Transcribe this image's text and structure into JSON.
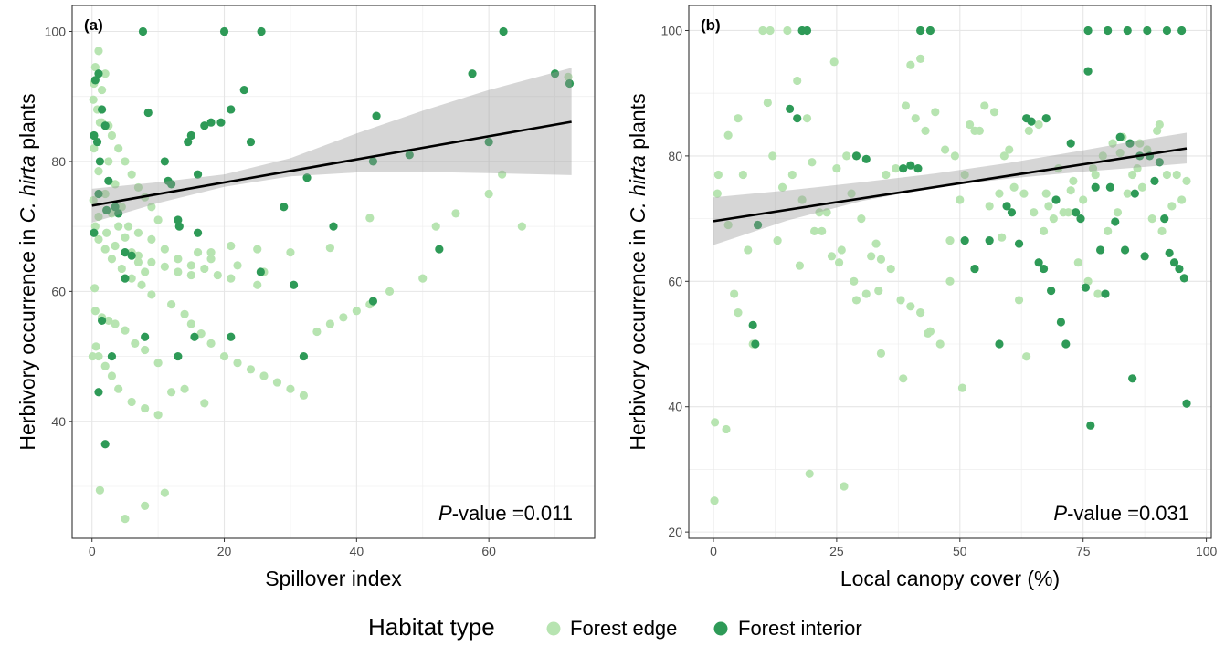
{
  "legend": {
    "title": "Habitat type",
    "items": [
      {
        "label": "Forest edge",
        "color": "#b7e4b1"
      },
      {
        "label": "Forest interior",
        "color": "#2e9a57"
      }
    ]
  },
  "chart_data": [
    {
      "type": "scatter",
      "panel_label": "(a)",
      "xlabel": "Spillover index",
      "ylabel_pre": "Herbivory occurrence in ",
      "ylabel_italic": "C. hirta",
      "ylabel_post": " plants",
      "pvalue_italic": "P",
      "pvalue_rest": "-value =0.011",
      "xlim": [
        -3,
        76
      ],
      "ylim": [
        22,
        104
      ],
      "xticks": [
        0,
        20,
        40,
        60
      ],
      "yticks": [
        40,
        60,
        80,
        100
      ],
      "xtick_labels": [
        "0",
        "20",
        "40",
        "60"
      ],
      "ytick_labels": [
        "40",
        "60",
        "80",
        "100"
      ],
      "grid": true,
      "trend": {
        "x": [
          0,
          72.5
        ],
        "y": [
          73.2,
          86.1
        ]
      },
      "ci_band": {
        "x": [
          0,
          10,
          20,
          30,
          40,
          50,
          60,
          72.5
        ],
        "lower": [
          70.6,
          73.6,
          76.1,
          77.7,
          78.3,
          78.4,
          78.2,
          77.9
        ],
        "upper": [
          75.8,
          76.8,
          78.0,
          80.5,
          84.3,
          87.8,
          91.0,
          94.4
        ]
      },
      "series": [
        {
          "name": "Forest edge",
          "color": "#b7e4b1",
          "x": [
            1.0,
            0.5,
            2.0,
            0.3,
            1.5,
            0.2,
            0.8,
            1.2,
            2.5,
            3.0,
            4.0,
            5.0,
            6.0,
            7.0,
            8.0,
            9.0,
            10.0,
            0.5,
            1.0,
            2.0,
            3.0,
            4.5,
            6.0,
            7.5,
            9.0,
            12.0,
            14.0,
            15.0,
            16.5,
            18.0,
            20.0,
            22.0,
            24.0,
            26.0,
            28.0,
            30.0,
            32.0,
            34.0,
            36.0,
            38.0,
            40.0,
            42.0,
            45.0,
            50.0,
            52.0,
            55.0,
            60.0,
            62.0,
            65.0,
            72.0,
            0.3,
            1.0,
            2.0,
            3.0,
            4.0,
            5.0,
            6.0,
            7.0,
            8.0,
            1.5,
            2.5,
            3.5,
            4.5,
            5.5,
            7.0,
            9.0,
            11.0,
            13.0,
            15.0,
            17.0,
            19.0,
            21.0,
            25.0,
            0.5,
            1.5,
            2.5,
            3.5,
            5.0,
            6.5,
            8.0,
            10.0,
            1.0,
            2.0,
            3.0,
            4.0,
            6.0,
            8.0,
            10.0,
            12.0,
            14.0,
            16.0,
            18.0,
            22.0,
            26.0,
            0.2,
            1.0,
            2.2,
            3.5,
            5.0,
            7.0,
            9.0,
            11.0,
            13.0,
            15.0,
            18.0,
            21.0,
            25.0,
            30.0,
            36.0,
            42.0,
            5.0,
            8.0,
            11.0,
            17.0,
            1.2,
            0.6,
            0.1,
            0.4
          ],
          "y": [
            97,
            94.5,
            93.5,
            92,
            91,
            89.5,
            88,
            86,
            85.5,
            84,
            82,
            80,
            78,
            76,
            74.5,
            73,
            71,
            70,
            68,
            66.5,
            65,
            63.5,
            62,
            61,
            59.5,
            58,
            56.5,
            55,
            53.5,
            52,
            50,
            49,
            48,
            47,
            46,
            45,
            44,
            53.8,
            55,
            56,
            57,
            58,
            60,
            62,
            70,
            72,
            75,
            78,
            70,
            93,
            82,
            78.5,
            75,
            72,
            70,
            68.3,
            66,
            64.5,
            63,
            86,
            80,
            76.5,
            73,
            70,
            69,
            68,
            66.5,
            65,
            64,
            63.5,
            62.5,
            62,
            61,
            57,
            56,
            55.5,
            55,
            54,
            52,
            51,
            49,
            50,
            48.5,
            47,
            45,
            43,
            42,
            41,
            44.5,
            45,
            66,
            65,
            64,
            63,
            74,
            71.5,
            69,
            67,
            66,
            65.5,
            64.5,
            63.8,
            63,
            62.5,
            66,
            67,
            66.5,
            66,
            66.7,
            71.3,
            25,
            27,
            29,
            42.8,
            29.4,
            51.5,
            50,
            60.5
          ]
        },
        {
          "name": "Forest interior",
          "color": "#2e9a57",
          "x": [
            7.7,
            20.0,
            25.6,
            62.2,
            72.2,
            0.5,
            1.0,
            1.5,
            2.0,
            0.3,
            0.8,
            1.2,
            2.5,
            3.5,
            4.0,
            5.0,
            8.5,
            11.0,
            12.0,
            13.0,
            14.5,
            15.0,
            16.0,
            17.0,
            18.0,
            19.5,
            21.0,
            23.0,
            24.0,
            32.0,
            36.5,
            42.5,
            43.0,
            48.0,
            52.5,
            57.5,
            60.0,
            70.0,
            1.0,
            0.3,
            2.0,
            3.0,
            5.0,
            6.0,
            8.0,
            11.5,
            13.0,
            15.5,
            21.0,
            25.5,
            30.5,
            32.5,
            42.5,
            1.0,
            1.5,
            2.2,
            13.2,
            16.0,
            29.0
          ],
          "y": [
            100,
            100,
            100,
            100,
            92,
            92.5,
            93.5,
            88,
            85.5,
            84,
            83,
            80,
            77,
            73,
            72,
            66,
            87.5,
            80,
            76.5,
            71,
            83,
            84,
            69,
            85.5,
            86,
            86,
            88,
            91,
            83,
            50,
            70,
            58.5,
            87,
            81,
            66.5,
            93.5,
            83,
            93.5,
            44.5,
            69,
            36.5,
            50,
            62,
            65.5,
            53,
            77,
            50,
            53,
            53,
            63,
            61,
            77.5,
            80,
            75,
            55.5,
            72.5,
            70,
            78,
            73
          ]
        }
      ]
    },
    {
      "type": "scatter",
      "panel_label": "(b)",
      "xlabel": "Local canopy cover (%)",
      "ylabel_pre": "Herbivory occurrence in ",
      "ylabel_italic": "C. hirta",
      "ylabel_post": " plants",
      "pvalue_italic": "P",
      "pvalue_rest": "-value =0.031",
      "xlim": [
        -5,
        101
      ],
      "ylim": [
        19,
        104
      ],
      "xticks": [
        0,
        25,
        50,
        75,
        100
      ],
      "yticks": [
        20,
        40,
        60,
        80,
        100
      ],
      "xtick_labels": [
        "0",
        "25",
        "50",
        "75",
        "100"
      ],
      "ytick_labels": [
        "20",
        "40",
        "60",
        "80",
        "100"
      ],
      "grid": true,
      "trend": {
        "x": [
          0,
          96
        ],
        "y": [
          69.6,
          81.2
        ]
      },
      "ci_band": {
        "x": [
          0,
          15,
          30,
          45,
          60,
          75,
          85,
          96
        ],
        "lower": [
          65.8,
          69.7,
          72.8,
          75.0,
          76.4,
          77.5,
          78.1,
          78.8
        ],
        "upper": [
          73.4,
          74.5,
          75.8,
          77.2,
          78.9,
          80.9,
          82.3,
          83.7
        ]
      },
      "series": [
        {
          "name": "Forest edge",
          "color": "#b7e4b1",
          "x": [
            0.2,
            0.3,
            2.6,
            1.0,
            0.8,
            3.0,
            4.2,
            5.0,
            8.0,
            10.0,
            11.5,
            15.0,
            17.0,
            19.0,
            20.0,
            21.5,
            23.0,
            25.0,
            27.0,
            28.0,
            30.0,
            32.0,
            34.0,
            36.0,
            38.0,
            40.0,
            42.0,
            44.0,
            46.0,
            48.0,
            50.0,
            52.0,
            54.0,
            56.0,
            58.0,
            60.0,
            62.0,
            64.0,
            66.0,
            68.0,
            70.0,
            72.0,
            74.0,
            76.0,
            78.0,
            80.0,
            82.0,
            84.0,
            86.0,
            88.0,
            90.0,
            92.0,
            94.0,
            96.0,
            5.0,
            7.0,
            9.0,
            12.0,
            14.0,
            16.0,
            18.0,
            22.0,
            24.0,
            26.0,
            28.5,
            31.0,
            33.0,
            35.0,
            37.0,
            39.0,
            41.0,
            43.0,
            45.0,
            47.0,
            49.0,
            51.0,
            53.0,
            55.0,
            57.0,
            59.0,
            61.0,
            63.0,
            65.0,
            67.0,
            69.0,
            71.0,
            73.0,
            75.0,
            77.0,
            79.0,
            81.0,
            83.0,
            85.0,
            87.0,
            89.0,
            91.0,
            93.0,
            95.0,
            3.0,
            6.0,
            13.0,
            17.5,
            20.5,
            25.5,
            29.0,
            34.0,
            38.5,
            43.5,
            48.0,
            53.0,
            58.5,
            63.5,
            67.5,
            72.5,
            77.5,
            82.5,
            86.5,
            90.5,
            19.5,
            26.5,
            33.5,
            50.5,
            42.0,
            40.0,
            11.0,
            24.5
          ],
          "y": [
            25,
            37.5,
            36.4,
            77,
            74,
            69,
            58,
            55,
            50,
            100,
            100,
            100,
            92,
            86,
            79,
            71,
            71,
            78,
            80,
            74,
            70,
            64,
            63.5,
            62,
            57,
            56,
            55,
            52,
            50,
            60,
            73,
            85,
            84,
            72,
            74,
            81,
            57,
            84,
            85,
            72,
            78,
            71,
            63,
            60,
            58,
            68,
            71,
            74,
            78,
            81,
            84,
            77,
            77,
            76,
            86,
            65,
            69,
            80,
            75,
            77,
            73,
            68,
            64,
            65,
            60,
            58,
            66,
            77,
            78,
            88,
            86,
            84,
            87,
            81,
            80,
            77,
            84,
            88,
            87,
            80,
            75,
            74,
            71,
            68,
            70,
            71,
            76,
            73,
            78,
            80,
            82,
            83,
            77,
            75,
            70,
            68,
            72,
            73,
            83.3,
            77,
            66.5,
            62.5,
            68,
            63,
            57,
            48.5,
            44.5,
            51.7,
            66.5,
            62,
            67,
            48,
            74,
            74.5,
            77,
            80.5,
            82,
            85,
            29.3,
            27.3,
            58.5,
            43,
            95.5,
            94.5,
            88.5,
            95
          ]
        },
        {
          "name": "Forest interior",
          "color": "#2e9a57",
          "x": [
            8.0,
            8.5,
            9.0,
            15.5,
            17.0,
            18.0,
            19.0,
            29.0,
            31.0,
            38.5,
            40.0,
            41.5,
            44.0,
            51.0,
            53.0,
            56.0,
            58.0,
            59.5,
            60.5,
            62.0,
            63.5,
            64.5,
            66.0,
            67.0,
            67.5,
            68.5,
            69.5,
            70.5,
            71.5,
            72.5,
            73.5,
            74.5,
            75.5,
            76.5,
            77.5,
            78.5,
            79.5,
            80.5,
            81.5,
            82.5,
            83.5,
            84.5,
            85.5,
            86.5,
            87.5,
            88.5,
            89.5,
            90.5,
            91.5,
            92.5,
            93.5,
            94.5,
            95.5,
            96.0,
            76.0,
            80.0,
            84.0,
            88.0,
            92.0,
            95.0,
            85.0,
            76.0,
            42.0
          ],
          "y": [
            53,
            50,
            69,
            87.5,
            86,
            100,
            100,
            80,
            79.5,
            78,
            78.5,
            78,
            100,
            66.5,
            62,
            66.5,
            50,
            72,
            71,
            66,
            86,
            85.5,
            63,
            62,
            86,
            58.5,
            73,
            53.5,
            50,
            82,
            71,
            70,
            59,
            37,
            75,
            65,
            58,
            75,
            69.5,
            83,
            65,
            82,
            74,
            80,
            64,
            80,
            76,
            79,
            70,
            64.5,
            63,
            62,
            60.5,
            40.5,
            100,
            100,
            100,
            100,
            100,
            100,
            44.5,
            93.5,
            100
          ]
        }
      ]
    }
  ]
}
